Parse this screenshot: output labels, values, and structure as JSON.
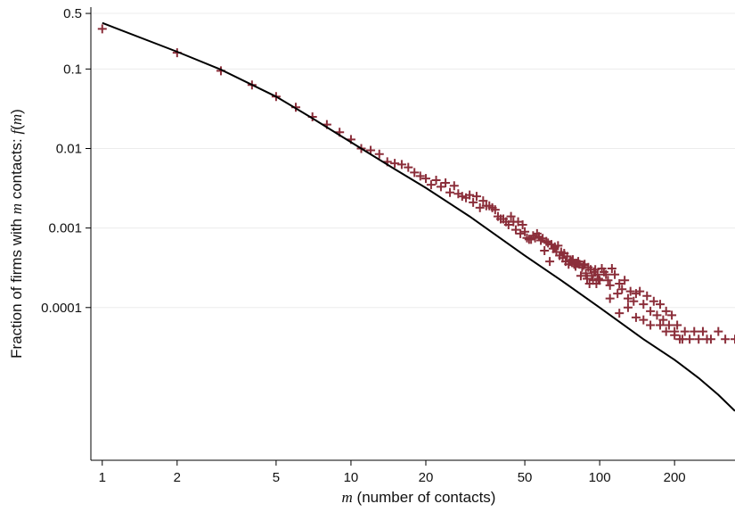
{
  "chart_data": {
    "type": "scatter",
    "title": "",
    "xlabel": {
      "var": "m",
      "rest": " (number of contacts)"
    },
    "ylabel": {
      "pre": "Fraction of firms with ",
      "var": "m",
      "mid": " contacts: ",
      "fn": "f",
      "arg": "m"
    },
    "xscale": "log",
    "yscale": "log",
    "xlim": [
      0.9,
      350
    ],
    "ylim": [
      1.2e-06,
      0.6
    ],
    "grid": "horizontal",
    "legend": "none",
    "colors": {
      "points": "#8b2e3a",
      "line": "#000000",
      "grid": "#ececec"
    },
    "x_ticks": [
      {
        "value": 1,
        "label": "1"
      },
      {
        "value": 2,
        "label": "2"
      },
      {
        "value": 5,
        "label": "5"
      },
      {
        "value": 10,
        "label": "10"
      },
      {
        "value": 20,
        "label": "20"
      },
      {
        "value": 50,
        "label": "50"
      },
      {
        "value": 100,
        "label": "100"
      },
      {
        "value": 200,
        "label": "200"
      }
    ],
    "y_ticks": [
      {
        "value": 0.5,
        "label": "0.5"
      },
      {
        "value": 0.1,
        "label": "0.1"
      },
      {
        "value": 0.01,
        "label": "0.01"
      },
      {
        "value": 0.001,
        "label": "0.001"
      },
      {
        "value": 0.0001,
        "label": "0.0001"
      }
    ],
    "series": [
      {
        "type": "scatter",
        "points": [
          [
            1,
            0.32
          ],
          [
            2,
            0.16
          ],
          [
            3,
            0.095
          ],
          [
            4,
            0.063
          ],
          [
            5,
            0.045
          ],
          [
            6,
            0.033
          ],
          [
            7,
            0.025
          ],
          [
            8,
            0.02
          ],
          [
            9,
            0.016
          ],
          [
            10,
            0.013
          ],
          [
            11,
            0.01
          ],
          [
            12,
            0.0095
          ],
          [
            13,
            0.0085
          ],
          [
            14,
            0.0068
          ],
          [
            15,
            0.0065
          ],
          [
            16,
            0.0063
          ],
          [
            17,
            0.0058
          ],
          [
            18,
            0.005
          ],
          [
            19,
            0.0045
          ],
          [
            20,
            0.0042
          ],
          [
            21,
            0.0035
          ],
          [
            22,
            0.004
          ],
          [
            23,
            0.0033
          ],
          [
            24,
            0.0037
          ],
          [
            25,
            0.0028
          ],
          [
            26,
            0.0034
          ],
          [
            27,
            0.0027
          ],
          [
            28,
            0.0025
          ],
          [
            29,
            0.0024
          ],
          [
            30,
            0.0026
          ],
          [
            31,
            0.0021
          ],
          [
            32,
            0.0025
          ],
          [
            33,
            0.0018
          ],
          [
            34,
            0.0022
          ],
          [
            35,
            0.0019
          ],
          [
            36,
            0.0019
          ],
          [
            37,
            0.0018
          ],
          [
            38,
            0.0017
          ],
          [
            39,
            0.0014
          ],
          [
            40,
            0.0013
          ],
          [
            41,
            0.0013
          ],
          [
            42,
            0.0012
          ],
          [
            43,
            0.0011
          ],
          [
            44,
            0.0014
          ],
          [
            45,
            0.0012
          ],
          [
            46,
            0.00095
          ],
          [
            47,
            0.0012
          ],
          [
            48,
            0.00085
          ],
          [
            49,
            0.0011
          ],
          [
            50,
            0.0009
          ],
          [
            51,
            0.00075
          ],
          [
            52,
            0.00072
          ],
          [
            53,
            0.00072
          ],
          [
            54,
            0.0008
          ],
          [
            55,
            0.00075
          ],
          [
            56,
            0.00085
          ],
          [
            57,
            0.00078
          ],
          [
            58,
            0.0007
          ],
          [
            59,
            0.00074
          ],
          [
            60,
            0.00052
          ],
          [
            61,
            0.00068
          ],
          [
            62,
            0.00065
          ],
          [
            63,
            0.00038
          ],
          [
            64,
            0.00062
          ],
          [
            65,
            0.00055
          ],
          [
            66,
            0.00058
          ],
          [
            67,
            0.0005
          ],
          [
            68,
            0.0006
          ],
          [
            69,
            0.00045
          ],
          [
            70,
            0.0005
          ],
          [
            71,
            0.00042
          ],
          [
            72,
            0.00048
          ],
          [
            73,
            0.00038
          ],
          [
            74,
            0.00044
          ],
          [
            75,
            0.00035
          ],
          [
            76,
            0.00038
          ],
          [
            77,
            0.00038
          ],
          [
            78,
            0.0004
          ],
          [
            79,
            0.00035
          ],
          [
            80,
            0.00033
          ],
          [
            81,
            0.00036
          ],
          [
            82,
            0.00038
          ],
          [
            83,
            0.00035
          ],
          [
            84,
            0.00025
          ],
          [
            85,
            0.00032
          ],
          [
            86,
            0.00034
          ],
          [
            87,
            0.00035
          ],
          [
            88,
            0.00027
          ],
          [
            89,
            0.00023
          ],
          [
            90,
            0.00032
          ],
          [
            91,
            0.0002
          ],
          [
            92,
            0.0003
          ],
          [
            93,
            0.00025
          ],
          [
            94,
            0.00022
          ],
          [
            95,
            0.00028
          ],
          [
            96,
            0.0003
          ],
          [
            97,
            0.0002
          ],
          [
            98,
            0.00026
          ],
          [
            99,
            0.00023
          ],
          [
            100,
            0.00022
          ],
          [
            102,
            0.00031
          ],
          [
            104,
            0.00028
          ],
          [
            106,
            0.00026
          ],
          [
            108,
            0.00022
          ],
          [
            110,
            0.00019
          ],
          [
            112,
            0.00031
          ],
          [
            115,
            0.00026
          ],
          [
            118,
            0.00015
          ],
          [
            120,
            0.0002
          ],
          [
            123,
            0.00017
          ],
          [
            126,
            0.00022
          ],
          [
            130,
            0.00013
          ],
          [
            133,
            0.00016
          ],
          [
            137,
            0.00012
          ],
          [
            140,
            0.00015
          ],
          [
            145,
            0.00016
          ],
          [
            150,
            0.00011
          ],
          [
            155,
            0.00014
          ],
          [
            160,
            9e-05
          ],
          [
            165,
            0.00012
          ],
          [
            170,
            8e-05
          ],
          [
            175,
            0.00011
          ],
          [
            180,
            7e-05
          ],
          [
            185,
            9e-05
          ],
          [
            190,
            6e-05
          ],
          [
            195,
            8e-05
          ],
          [
            200,
            5e-05
          ],
          [
            205,
            6e-05
          ],
          [
            210,
            4e-05
          ],
          [
            220,
            5e-05
          ],
          [
            230,
            4e-05
          ],
          [
            240,
            5e-05
          ],
          [
            250,
            4e-05
          ],
          [
            260,
            5e-05
          ],
          [
            270,
            4e-05
          ],
          [
            280,
            4e-05
          ],
          [
            300,
            5e-05
          ],
          [
            320,
            4e-05
          ],
          [
            350,
            4e-05
          ],
          [
            110,
            0.00013
          ],
          [
            120,
            8.5e-05
          ],
          [
            130,
            0.0001
          ],
          [
            140,
            7.5e-05
          ],
          [
            150,
            7e-05
          ],
          [
            160,
            6e-05
          ],
          [
            175,
            6e-05
          ],
          [
            185,
            5e-05
          ],
          [
            200,
            4.5e-05
          ],
          [
            215,
            4e-05
          ]
        ]
      },
      {
        "type": "line",
        "points": [
          [
            1,
            0.38
          ],
          [
            2,
            0.165
          ],
          [
            3,
            0.098
          ],
          [
            5,
            0.045
          ],
          [
            7,
            0.024
          ],
          [
            10,
            0.012
          ],
          [
            15,
            0.0055
          ],
          [
            20,
            0.0032
          ],
          [
            30,
            0.0014
          ],
          [
            50,
            0.00045
          ],
          [
            70,
            0.00022
          ],
          [
            100,
            0.0001
          ],
          [
            150,
            4e-05
          ],
          [
            200,
            2.2e-05
          ],
          [
            250,
            1.3e-05
          ],
          [
            300,
            8e-06
          ],
          [
            350,
            5e-06
          ]
        ]
      }
    ]
  }
}
